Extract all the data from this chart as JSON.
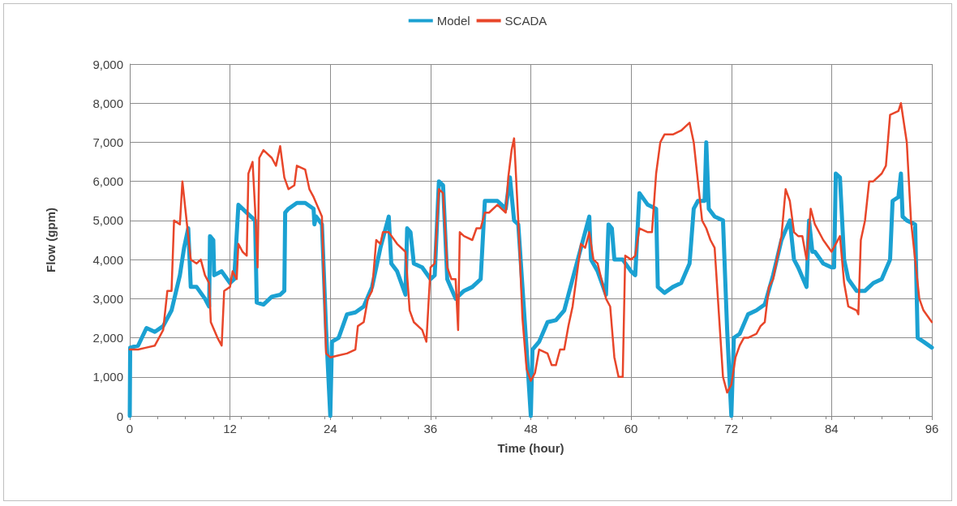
{
  "chart_data": {
    "type": "line",
    "xlabel": "Time (hour)",
    "ylabel": "Flow (gpm)",
    "xlim": [
      0,
      96
    ],
    "xticks": [
      0,
      12,
      24,
      36,
      48,
      60,
      72,
      84,
      96
    ],
    "ylim": [
      0,
      9000
    ],
    "yticks": [
      {
        "value": 0,
        "label": "0"
      },
      {
        "value": 1000,
        "label": "1,000"
      },
      {
        "value": 2000,
        "label": "2,000"
      },
      {
        "value": 3000,
        "label": "3,000"
      },
      {
        "value": 4000,
        "label": "4,000"
      },
      {
        "value": 5000,
        "label": "5,000"
      },
      {
        "value": 6000,
        "label": "6,000"
      },
      {
        "value": 7000,
        "label": "7,000"
      },
      {
        "value": 8000,
        "label": "8,000"
      },
      {
        "value": 9000,
        "label": "9,000"
      }
    ],
    "grid": true,
    "legend": "top",
    "marker": "none",
    "line_style": "solid",
    "series": [
      {
        "name": "Model",
        "color": "#1ba1d2",
        "x": [
          0,
          0.05,
          1,
          2,
          3,
          4,
          5,
          6,
          6.5,
          7,
          7.3,
          8,
          9,
          9.5,
          9.6,
          10,
          10.1,
          11,
          12,
          12.5,
          13,
          14.5,
          15,
          15.2,
          16,
          17,
          18,
          18.5,
          18.6,
          19,
          20,
          21,
          22,
          22.1,
          22.3,
          23,
          23.5,
          24,
          24.2,
          25,
          26,
          27,
          28,
          29,
          30,
          31,
          31.3,
          32,
          33,
          33.2,
          33.6,
          34,
          35,
          36,
          36.5,
          37,
          37.5,
          38,
          39,
          40,
          41,
          42,
          42.5,
          44,
          45,
          45.5,
          46,
          46.5,
          47.5,
          48,
          48.2,
          49,
          50,
          51,
          52,
          53,
          54,
          55,
          55.2,
          56,
          57,
          57.3,
          57.7,
          58,
          59,
          60,
          60.5,
          61,
          62,
          63,
          63.2,
          64,
          65,
          66,
          67,
          67.5,
          68,
          68.8,
          69,
          69.3,
          70,
          71,
          71.5,
          72,
          72.3,
          73,
          74,
          75,
          76,
          77,
          78,
          79,
          79.5,
          80,
          81,
          81.3,
          81.7,
          82,
          83,
          84,
          84.3,
          84.5,
          85,
          85.5,
          86,
          87,
          88,
          89,
          90,
          91,
          91.3,
          92,
          92.3,
          92.5,
          93,
          94,
          94.3,
          95,
          96
        ],
        "values": [
          0,
          1750,
          1800,
          2250,
          2150,
          2300,
          2700,
          3600,
          4300,
          4800,
          3300,
          3300,
          3000,
          2800,
          4600,
          4500,
          3600,
          3700,
          3400,
          3500,
          5400,
          5100,
          5000,
          2900,
          2850,
          3050,
          3100,
          3200,
          5200,
          5300,
          5450,
          5450,
          5300,
          4900,
          5100,
          4900,
          2200,
          0,
          1900,
          2000,
          2600,
          2650,
          2800,
          3300,
          4300,
          5100,
          3900,
          3700,
          3100,
          4800,
          4700,
          3900,
          3800,
          3500,
          3600,
          6000,
          5900,
          3500,
          3000,
          3200,
          3300,
          3500,
          5500,
          5500,
          5300,
          6100,
          5000,
          4900,
          1700,
          0,
          1700,
          1900,
          2400,
          2450,
          2700,
          3500,
          4300,
          5100,
          4000,
          3700,
          3100,
          4900,
          4800,
          4000,
          4000,
          3700,
          3600,
          5700,
          5400,
          5300,
          3300,
          3150,
          3300,
          3400,
          3900,
          5300,
          5500,
          5500,
          7000,
          5300,
          5100,
          5000,
          2200,
          0,
          2000,
          2100,
          2600,
          2700,
          2850,
          3600,
          4500,
          5000,
          4000,
          3800,
          3300,
          5000,
          4200,
          4200,
          3900,
          3800,
          3800,
          6200,
          6100,
          4000,
          3500,
          3200,
          3200,
          3400,
          3500,
          4000,
          5500,
          5600,
          6200,
          5100,
          5000,
          4900,
          2000,
          1900,
          1750
        ]
      },
      {
        "name": "SCADA",
        "color": "#e8462a",
        "x": [
          0,
          1,
          2,
          3,
          3.5,
          4,
          4.5,
          5,
          5.3,
          6,
          6.3,
          6.7,
          7.3,
          8,
          8.5,
          9,
          9.5,
          9.7,
          10.5,
          11,
          11.3,
          12,
          12.3,
          12.8,
          13,
          13.5,
          14,
          14.2,
          14.7,
          15,
          15.3,
          15.5,
          16,
          17,
          17.5,
          18,
          18.5,
          19,
          19.7,
          20,
          21,
          21.5,
          22,
          23,
          23.5,
          24,
          25,
          26,
          27,
          27.3,
          28,
          28.5,
          29,
          29.5,
          30,
          30.3,
          31,
          32,
          33,
          33.5,
          34,
          35,
          35.5,
          36,
          36.5,
          37,
          37.5,
          38,
          38.5,
          39,
          39.3,
          39.5,
          40,
          41,
          41.5,
          42,
          42.5,
          43,
          44,
          45,
          45.3,
          45.7,
          46,
          46.5,
          47,
          47.5,
          48,
          48.5,
          49,
          50,
          50.5,
          51,
          51.5,
          52,
          52.5,
          53,
          54,
          54.5,
          55,
          55.5,
          56,
          57,
          57.5,
          58,
          58.5,
          59,
          59.3,
          60,
          60.5,
          61,
          62,
          62.5,
          63,
          63.5,
          64,
          65,
          66,
          66.5,
          67,
          67.5,
          68,
          68.5,
          69,
          69.5,
          70,
          71,
          71.5,
          72,
          72.5,
          73,
          73.5,
          74,
          75,
          75.5,
          76,
          76.5,
          77,
          78,
          78.5,
          79,
          79.5,
          80,
          80.5,
          81,
          81.5,
          82,
          83,
          84,
          84.5,
          85,
          85.5,
          86,
          87,
          87.2,
          87.5,
          88,
          88.5,
          89,
          90,
          90.5,
          91,
          92,
          92.3,
          93,
          93.5,
          94,
          94.5,
          95,
          96
        ],
        "values": [
          1700,
          1700,
          1750,
          1800,
          2000,
          2200,
          3200,
          3200,
          5000,
          4900,
          6000,
          5200,
          4000,
          3900,
          4000,
          3600,
          3400,
          2400,
          2000,
          1800,
          3200,
          3300,
          3700,
          3500,
          4400,
          4200,
          4100,
          6200,
          6500,
          5300,
          3800,
          6600,
          6800,
          6600,
          6400,
          6900,
          6100,
          5800,
          5900,
          6400,
          6300,
          5800,
          5600,
          5100,
          1600,
          1500,
          1550,
          1600,
          1700,
          2300,
          2400,
          3000,
          3200,
          4500,
          4400,
          4700,
          4700,
          4400,
          4200,
          2700,
          2400,
          2200,
          1900,
          3800,
          3900,
          5800,
          5700,
          3800,
          3500,
          3500,
          2200,
          4700,
          4600,
          4500,
          4800,
          4800,
          5200,
          5200,
          5400,
          5200,
          6100,
          6800,
          7100,
          5000,
          2500,
          1200,
          900,
          1100,
          1700,
          1600,
          1300,
          1300,
          1700,
          1700,
          2300,
          2800,
          4400,
          4300,
          4700,
          4000,
          3900,
          3000,
          2800,
          1500,
          1000,
          1000,
          4100,
          4000,
          4100,
          4800,
          4700,
          4700,
          6200,
          7000,
          7200,
          7200,
          7300,
          7400,
          7500,
          7000,
          6000,
          5000,
          4800,
          4500,
          4300,
          1000,
          600,
          800,
          1500,
          1800,
          2000,
          2000,
          2100,
          2300,
          2400,
          3300,
          3500,
          4600,
          5800,
          5500,
          4700,
          4600,
          4600,
          4000,
          5300,
          4900,
          4500,
          4200,
          4400,
          4600,
          3400,
          2800,
          2700,
          2600,
          4500,
          5000,
          6000,
          6000,
          6200,
          6400,
          7700,
          7800,
          8000,
          7000,
          5000,
          4000,
          3000,
          2700,
          2400
        ]
      }
    ]
  }
}
